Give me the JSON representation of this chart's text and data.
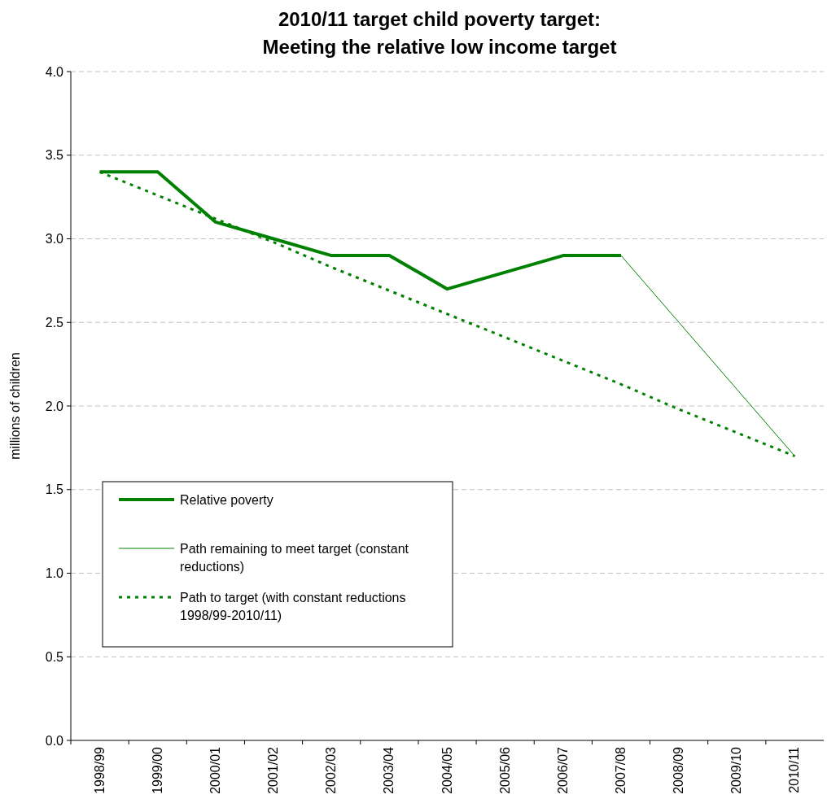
{
  "chart_data": {
    "type": "line",
    "title": "2010/11 target child poverty target:\nMeeting the relative low income target",
    "ylabel": "millions of children",
    "categories": [
      "1998/99",
      "1999/00",
      "2000/01",
      "2001/02",
      "2002/03",
      "2003/04",
      "2004/05",
      "2005/06",
      "2006/07",
      "2007/08",
      "2008/09",
      "2009/10",
      "2010/11"
    ],
    "series": [
      {
        "name": "Relative poverty",
        "color": "#008000",
        "line_style": "solid",
        "values": [
          3.4,
          3.4,
          3.1,
          3.0,
          2.9,
          2.9,
          2.7,
          2.8,
          2.9,
          2.9,
          null,
          null,
          null
        ]
      },
      {
        "name": "Path remaining to meet target (constant reductions)",
        "color": "#008000",
        "line_style": "solid",
        "values": [
          null,
          null,
          null,
          null,
          null,
          null,
          null,
          null,
          null,
          2.9,
          2.5,
          2.1,
          1.7
        ]
      },
      {
        "name": "Path to target (with constant reductions 1998/99-2010/11)",
        "color": "#008000",
        "line_style": "dotted",
        "values": [
          3.4,
          3.26,
          3.12,
          2.98,
          2.83,
          2.69,
          2.55,
          2.41,
          2.27,
          2.13,
          1.98,
          1.84,
          1.7
        ]
      }
    ],
    "ylim": [
      0,
      4
    ],
    "yticks": [
      {
        "value": 0,
        "label": "0.0"
      },
      {
        "value": 0.5,
        "label": "0.5"
      },
      {
        "value": 1,
        "label": "1.0"
      },
      {
        "value": 1.5,
        "label": "1.5"
      },
      {
        "value": 2,
        "label": "2.0"
      },
      {
        "value": 2.5,
        "label": "2.5"
      },
      {
        "value": 3,
        "label": "3.0"
      },
      {
        "value": 3.5,
        "label": "3.5"
      },
      {
        "value": 4,
        "label": "4.0"
      }
    ],
    "grid": "y",
    "legend": "bottom left",
    "marker": "none"
  }
}
